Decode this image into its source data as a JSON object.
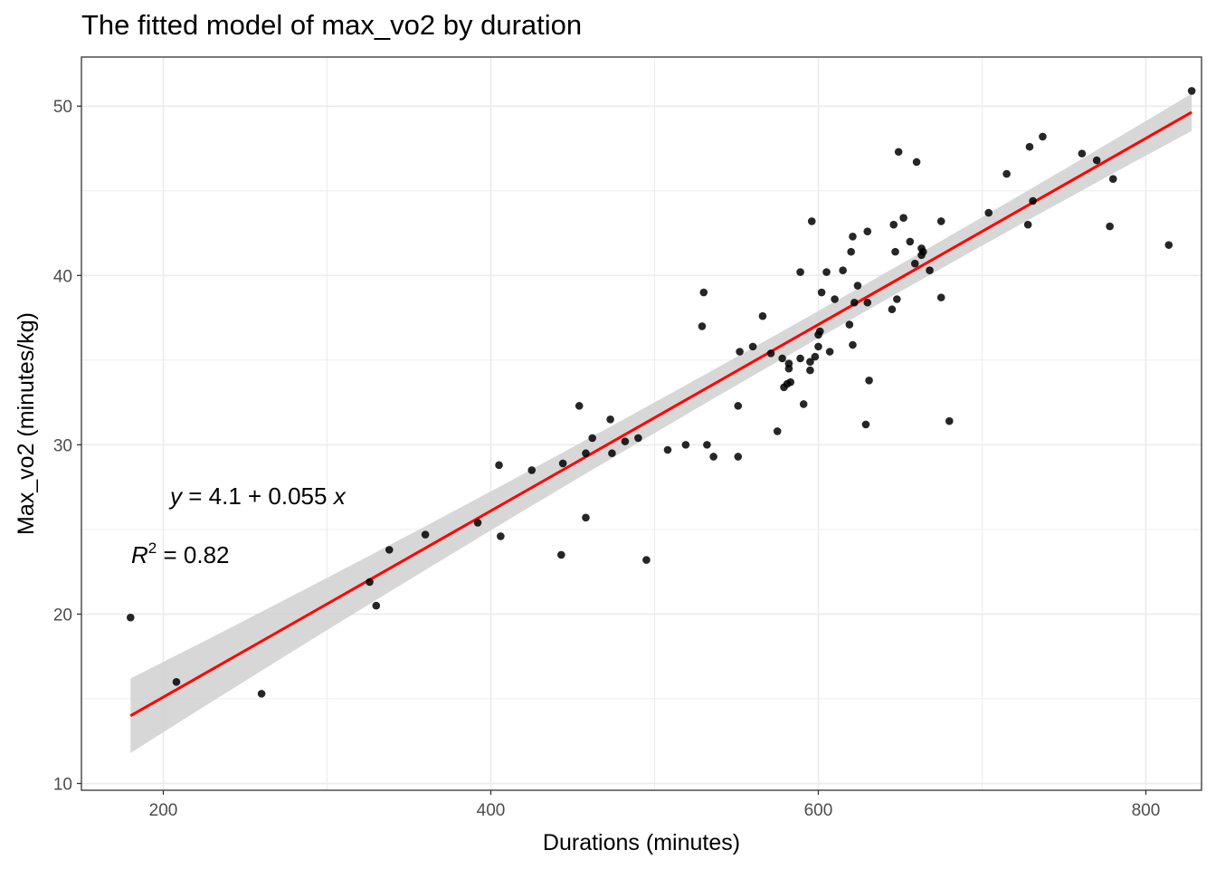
{
  "chart_data": {
    "type": "scatter",
    "title": "The fitted model of max_vo2 by duration",
    "xlabel": "Durations (minutes)",
    "ylabel": "Max_vo2 (minutes/kg)",
    "xlim": [
      150,
      834
    ],
    "ylim": [
      9.6,
      52.9
    ],
    "xticks": [
      200,
      400,
      600,
      800
    ],
    "yticks": [
      10,
      20,
      30,
      40,
      50
    ],
    "grid": true,
    "colors": {
      "points": "#000000",
      "fit_line": "#ff0000",
      "confidence_band": "#d3d3d3",
      "panel_border": "#333333",
      "grid": "#ebebeb"
    },
    "points": [
      [
        180,
        19.8
      ],
      [
        208,
        16.0
      ],
      [
        260,
        15.3
      ],
      [
        326,
        21.9
      ],
      [
        330,
        20.5
      ],
      [
        338,
        23.8
      ],
      [
        360,
        24.7
      ],
      [
        392,
        25.4
      ],
      [
        405,
        28.8
      ],
      [
        406,
        24.6
      ],
      [
        425,
        28.5
      ],
      [
        443,
        23.5
      ],
      [
        444,
        28.9
      ],
      [
        454,
        32.3
      ],
      [
        458,
        29.5
      ],
      [
        458,
        25.7
      ],
      [
        462,
        30.4
      ],
      [
        473,
        31.5
      ],
      [
        474,
        29.5
      ],
      [
        482,
        30.2
      ],
      [
        490,
        30.4
      ],
      [
        495,
        23.2
      ],
      [
        508,
        29.7
      ],
      [
        519,
        30.0
      ],
      [
        529,
        37.0
      ],
      [
        530,
        39.0
      ],
      [
        532,
        30.0
      ],
      [
        536,
        29.3
      ],
      [
        551,
        32.3
      ],
      [
        551,
        29.3
      ],
      [
        552,
        35.5
      ],
      [
        560,
        35.8
      ],
      [
        566,
        37.6
      ],
      [
        571,
        35.4
      ],
      [
        575,
        30.8
      ],
      [
        578,
        35.1
      ],
      [
        579,
        33.4
      ],
      [
        581,
        33.6
      ],
      [
        582,
        34.5
      ],
      [
        582,
        34.8
      ],
      [
        583,
        33.7
      ],
      [
        589,
        40.2
      ],
      [
        589,
        35.1
      ],
      [
        591,
        32.4
      ],
      [
        595,
        34.9
      ],
      [
        595,
        34.4
      ],
      [
        596,
        43.2
      ],
      [
        598,
        35.2
      ],
      [
        600,
        35.8
      ],
      [
        600,
        36.5
      ],
      [
        601,
        36.7
      ],
      [
        602,
        39.0
      ],
      [
        605,
        40.2
      ],
      [
        607,
        35.5
      ],
      [
        610,
        38.6
      ],
      [
        615,
        40.3
      ],
      [
        619,
        37.1
      ],
      [
        620,
        41.4
      ],
      [
        621,
        35.9
      ],
      [
        621,
        42.3
      ],
      [
        622,
        38.4
      ],
      [
        624,
        39.4
      ],
      [
        629,
        31.2
      ],
      [
        630,
        38.4
      ],
      [
        630,
        42.6
      ],
      [
        631,
        33.8
      ],
      [
        645,
        38.0
      ],
      [
        646,
        43.0
      ],
      [
        647,
        41.4
      ],
      [
        648,
        38.6
      ],
      [
        649,
        47.3
      ],
      [
        652,
        43.4
      ],
      [
        656,
        42.0
      ],
      [
        659,
        40.7
      ],
      [
        660,
        46.7
      ],
      [
        663,
        41.6
      ],
      [
        663,
        41.2
      ],
      [
        664,
        41.4
      ],
      [
        668,
        40.3
      ],
      [
        675,
        43.2
      ],
      [
        675,
        38.7
      ],
      [
        680,
        31.4
      ],
      [
        704,
        43.7
      ],
      [
        715,
        46.0
      ],
      [
        728,
        43.0
      ],
      [
        729,
        47.6
      ],
      [
        731,
        44.4
      ],
      [
        737,
        48.2
      ],
      [
        761,
        47.2
      ],
      [
        770,
        46.8
      ],
      [
        778,
        42.9
      ],
      [
        780,
        45.7
      ],
      [
        814,
        41.8
      ],
      [
        828,
        50.9
      ]
    ],
    "fit": {
      "intercept": 4.1,
      "slope": 0.055,
      "x_range": [
        180,
        828
      ],
      "band_halfwidth": [
        2.2,
        0.9,
        1.1
      ]
    },
    "annotations": {
      "equation": "y = 4.1 + 0.055 x",
      "r2": "R2 = 0.82"
    }
  }
}
